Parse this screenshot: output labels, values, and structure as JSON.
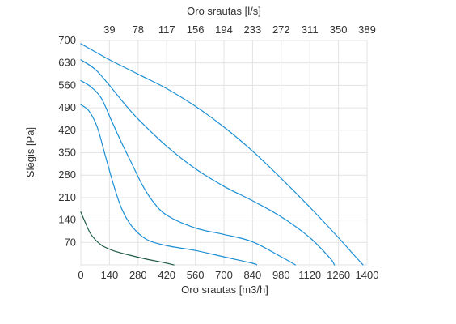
{
  "chart_data": {
    "type": "line",
    "title": "",
    "xlabel": "Oro srautas [m3/h]",
    "ylabel": "Slėgis [Pa]",
    "x2label": "Oro srautas [l/s]",
    "xlim": [
      0,
      1400
    ],
    "ylim": [
      0,
      700
    ],
    "x_ticks": [
      "0",
      "140",
      "280",
      "420",
      "560",
      "700",
      "840",
      "980",
      "1120",
      "1260",
      "1400"
    ],
    "y_ticks": [
      "70",
      "140",
      "210",
      "280",
      "350",
      "420",
      "490",
      "560",
      "630",
      "700"
    ],
    "x2_ticks": [
      "39",
      "78",
      "117",
      "156",
      "194",
      "233",
      "272",
      "311",
      "350",
      "389"
    ],
    "grid": true,
    "colors": {
      "blue": "#1a8fd6",
      "green": "#1f5a45"
    },
    "series": [
      {
        "color": "#1a8fd6",
        "points": [
          [
            0,
            690
          ],
          [
            140,
            640
          ],
          [
            280,
            595
          ],
          [
            420,
            550
          ],
          [
            560,
            495
          ],
          [
            700,
            430
          ],
          [
            840,
            355
          ],
          [
            980,
            270
          ],
          [
            1120,
            180
          ],
          [
            1260,
            85
          ],
          [
            1330,
            35
          ],
          [
            1380,
            0
          ]
        ]
      },
      {
        "color": "#1a8fd6",
        "points": [
          [
            0,
            640
          ],
          [
            70,
            610
          ],
          [
            140,
            560
          ],
          [
            210,
            505
          ],
          [
            280,
            455
          ],
          [
            420,
            370
          ],
          [
            560,
            300
          ],
          [
            700,
            245
          ],
          [
            840,
            200
          ],
          [
            980,
            150
          ],
          [
            1120,
            85
          ],
          [
            1220,
            20
          ],
          [
            1240,
            0
          ]
        ]
      },
      {
        "color": "#1a8fd6",
        "points": [
          [
            0,
            575
          ],
          [
            50,
            555
          ],
          [
            100,
            520
          ],
          [
            150,
            450
          ],
          [
            200,
            380
          ],
          [
            250,
            315
          ],
          [
            300,
            250
          ],
          [
            350,
            200
          ],
          [
            420,
            155
          ],
          [
            560,
            115
          ],
          [
            700,
            95
          ],
          [
            840,
            72
          ],
          [
            980,
            25
          ],
          [
            1050,
            0
          ]
        ]
      },
      {
        "color": "#1a8fd6",
        "points": [
          [
            0,
            500
          ],
          [
            40,
            480
          ],
          [
            80,
            430
          ],
          [
            120,
            340
          ],
          [
            160,
            250
          ],
          [
            200,
            175
          ],
          [
            250,
            120
          ],
          [
            320,
            80
          ],
          [
            420,
            60
          ],
          [
            560,
            45
          ],
          [
            700,
            25
          ],
          [
            840,
            5
          ],
          [
            860,
            0
          ]
        ]
      },
      {
        "color": "#1f5a45",
        "points": [
          [
            0,
            165
          ],
          [
            20,
            135
          ],
          [
            50,
            95
          ],
          [
            100,
            62
          ],
          [
            160,
            44
          ],
          [
            240,
            30
          ],
          [
            320,
            18
          ],
          [
            400,
            8
          ],
          [
            455,
            0
          ]
        ]
      }
    ]
  }
}
